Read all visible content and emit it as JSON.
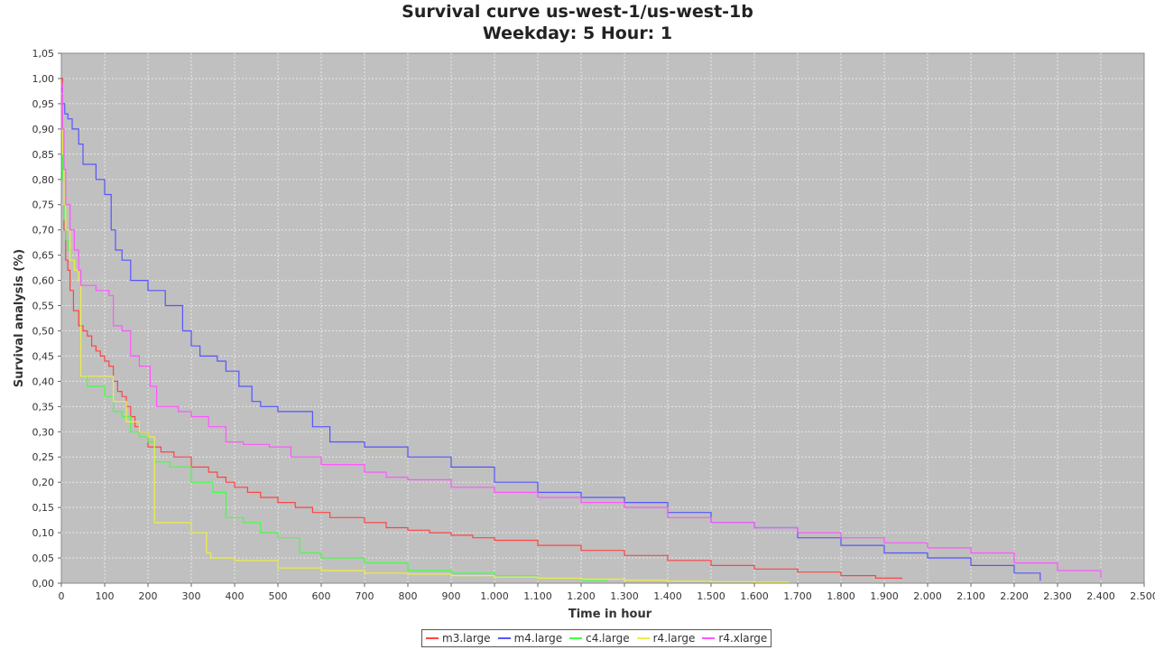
{
  "chart_data": {
    "type": "line",
    "title": "Survival curve us-west-1/us-west-1b",
    "subtitle": "Weekday: 5 Hour: 1",
    "xlabel": "Time in hour",
    "ylabel": "Survival analysis (%)",
    "xlim": [
      0,
      2500
    ],
    "ylim": [
      0,
      1.05
    ],
    "x_ticks": [
      "0",
      "100",
      "200",
      "300",
      "400",
      "500",
      "600",
      "700",
      "800",
      "900",
      "1.000",
      "1.100",
      "1.200",
      "1.300",
      "1.400",
      "1.500",
      "1.600",
      "1.700",
      "1.800",
      "1.900",
      "2.000",
      "2.100",
      "2.200",
      "2.300",
      "2.400",
      "2.500"
    ],
    "y_ticks": [
      "0,00",
      "0,05",
      "0,10",
      "0,15",
      "0,20",
      "0,25",
      "0,30",
      "0,35",
      "0,40",
      "0,45",
      "0,50",
      "0,55",
      "0,60",
      "0,65",
      "0,70",
      "0,75",
      "0,80",
      "0,85",
      "0,90",
      "0,95",
      "1,00",
      "1,05"
    ],
    "grid": true,
    "legend_position": "bottom",
    "series": [
      {
        "name": "m3.large",
        "color": "#ff4444",
        "x": [
          0,
          3,
          6,
          10,
          15,
          20,
          28,
          40,
          50,
          60,
          70,
          80,
          90,
          100,
          110,
          120,
          130,
          140,
          150,
          160,
          170,
          180,
          200,
          230,
          260,
          300,
          340,
          360,
          380,
          400,
          430,
          460,
          500,
          540,
          580,
          620,
          700,
          750,
          800,
          850,
          900,
          950,
          1000,
          1100,
          1200,
          1300,
          1400,
          1500,
          1600,
          1700,
          1800,
          1880,
          1940
        ],
        "y": [
          1.0,
          0.8,
          0.7,
          0.64,
          0.62,
          0.58,
          0.54,
          0.51,
          0.5,
          0.49,
          0.47,
          0.46,
          0.45,
          0.44,
          0.43,
          0.4,
          0.38,
          0.37,
          0.35,
          0.33,
          0.31,
          0.3,
          0.27,
          0.26,
          0.25,
          0.23,
          0.22,
          0.21,
          0.2,
          0.19,
          0.18,
          0.17,
          0.16,
          0.15,
          0.14,
          0.13,
          0.12,
          0.11,
          0.105,
          0.1,
          0.095,
          0.09,
          0.085,
          0.075,
          0.065,
          0.055,
          0.045,
          0.035,
          0.028,
          0.022,
          0.015,
          0.01,
          0.008
        ]
      },
      {
        "name": "m4.large",
        "color": "#5555ff",
        "x": [
          0,
          3,
          8,
          15,
          25,
          40,
          50,
          80,
          100,
          115,
          125,
          140,
          160,
          200,
          240,
          280,
          300,
          320,
          360,
          380,
          410,
          440,
          460,
          500,
          580,
          620,
          700,
          800,
          900,
          1000,
          1100,
          1200,
          1300,
          1400,
          1500,
          1600,
          1700,
          1800,
          1900,
          2000,
          2100,
          2200,
          2260
        ],
        "y": [
          0.98,
          0.95,
          0.93,
          0.92,
          0.9,
          0.87,
          0.83,
          0.8,
          0.77,
          0.7,
          0.66,
          0.64,
          0.6,
          0.58,
          0.55,
          0.5,
          0.47,
          0.45,
          0.44,
          0.42,
          0.39,
          0.36,
          0.35,
          0.34,
          0.31,
          0.28,
          0.27,
          0.25,
          0.23,
          0.2,
          0.18,
          0.17,
          0.16,
          0.14,
          0.12,
          0.11,
          0.09,
          0.075,
          0.06,
          0.05,
          0.035,
          0.02,
          0.005
        ]
      },
      {
        "name": "c4.large",
        "color": "#44ff44",
        "x": [
          0,
          3,
          6,
          10,
          15,
          20,
          30,
          40,
          45,
          60,
          100,
          120,
          140,
          160,
          180,
          200,
          215,
          250,
          300,
          350,
          380,
          420,
          460,
          500,
          550,
          600,
          700,
          800,
          900,
          1000,
          1100,
          1200,
          1260
        ],
        "y": [
          0.95,
          0.8,
          0.72,
          0.68,
          0.66,
          0.64,
          0.62,
          0.6,
          0.41,
          0.39,
          0.37,
          0.34,
          0.33,
          0.3,
          0.29,
          0.28,
          0.24,
          0.23,
          0.2,
          0.18,
          0.13,
          0.12,
          0.1,
          0.09,
          0.06,
          0.05,
          0.04,
          0.025,
          0.02,
          0.015,
          0.01,
          0.005,
          0.003
        ]
      },
      {
        "name": "r4.large",
        "color": "#eeee44",
        "x": [
          0,
          3,
          6,
          10,
          20,
          30,
          40,
          45,
          90,
          120,
          150,
          180,
          200,
          215,
          260,
          300,
          335,
          345,
          400,
          500,
          600,
          700,
          800,
          900,
          1000,
          1100,
          1200,
          1300,
          1400,
          1500,
          1600,
          1680
        ],
        "y": [
          0.97,
          0.85,
          0.75,
          0.7,
          0.64,
          0.62,
          0.6,
          0.41,
          0.41,
          0.36,
          0.32,
          0.3,
          0.29,
          0.12,
          0.12,
          0.1,
          0.06,
          0.05,
          0.045,
          0.03,
          0.025,
          0.02,
          0.018,
          0.015,
          0.012,
          0.01,
          0.008,
          0.006,
          0.004,
          0.003,
          0.002,
          0.001
        ]
      },
      {
        "name": "r4.xlarge",
        "color": "#ff55ff",
        "x": [
          0,
          3,
          6,
          10,
          20,
          30,
          40,
          45,
          80,
          110,
          120,
          140,
          160,
          180,
          205,
          220,
          270,
          300,
          340,
          380,
          420,
          480,
          530,
          600,
          700,
          750,
          800,
          900,
          1000,
          1100,
          1200,
          1300,
          1400,
          1500,
          1600,
          1700,
          1800,
          1900,
          2000,
          2100,
          2200,
          2300,
          2400
        ],
        "y": [
          0.99,
          0.9,
          0.82,
          0.75,
          0.7,
          0.66,
          0.62,
          0.59,
          0.58,
          0.57,
          0.51,
          0.5,
          0.45,
          0.43,
          0.39,
          0.35,
          0.34,
          0.33,
          0.31,
          0.28,
          0.275,
          0.27,
          0.25,
          0.235,
          0.22,
          0.21,
          0.205,
          0.19,
          0.18,
          0.17,
          0.16,
          0.15,
          0.13,
          0.12,
          0.11,
          0.1,
          0.09,
          0.08,
          0.07,
          0.06,
          0.04,
          0.025,
          0.01
        ]
      }
    ]
  }
}
